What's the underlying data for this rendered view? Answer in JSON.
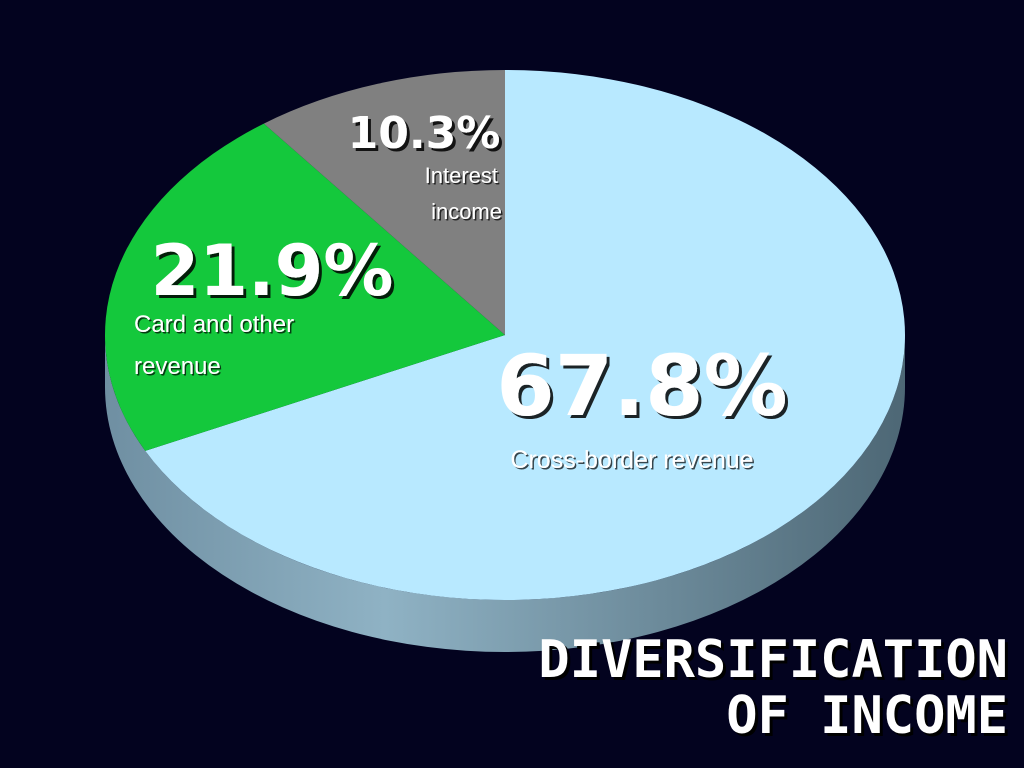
{
  "chart_data": {
    "type": "pie",
    "title_lines": [
      "DIVERSIFICATION",
      "OF INCOME"
    ],
    "start_angle_deg": 0,
    "direction": "clockwise",
    "slices": [
      {
        "percent_label": "67.8%",
        "label_lines": [
          "Cross-border revenue"
        ],
        "value": 67.8,
        "color": "#b8e9ff",
        "side_color": "#7f9fb0"
      },
      {
        "percent_label": "21.9%",
        "label_lines": [
          "Card and other",
          "revenue"
        ],
        "value": 21.9,
        "color": "#14c83c",
        "side_color": "#0e8a29"
      },
      {
        "percent_label": "10.3%",
        "label_lines": [
          "Interest",
          "income"
        ],
        "value": 10.3,
        "color": "#808080",
        "side_color": "#5a5a5a"
      }
    ]
  }
}
